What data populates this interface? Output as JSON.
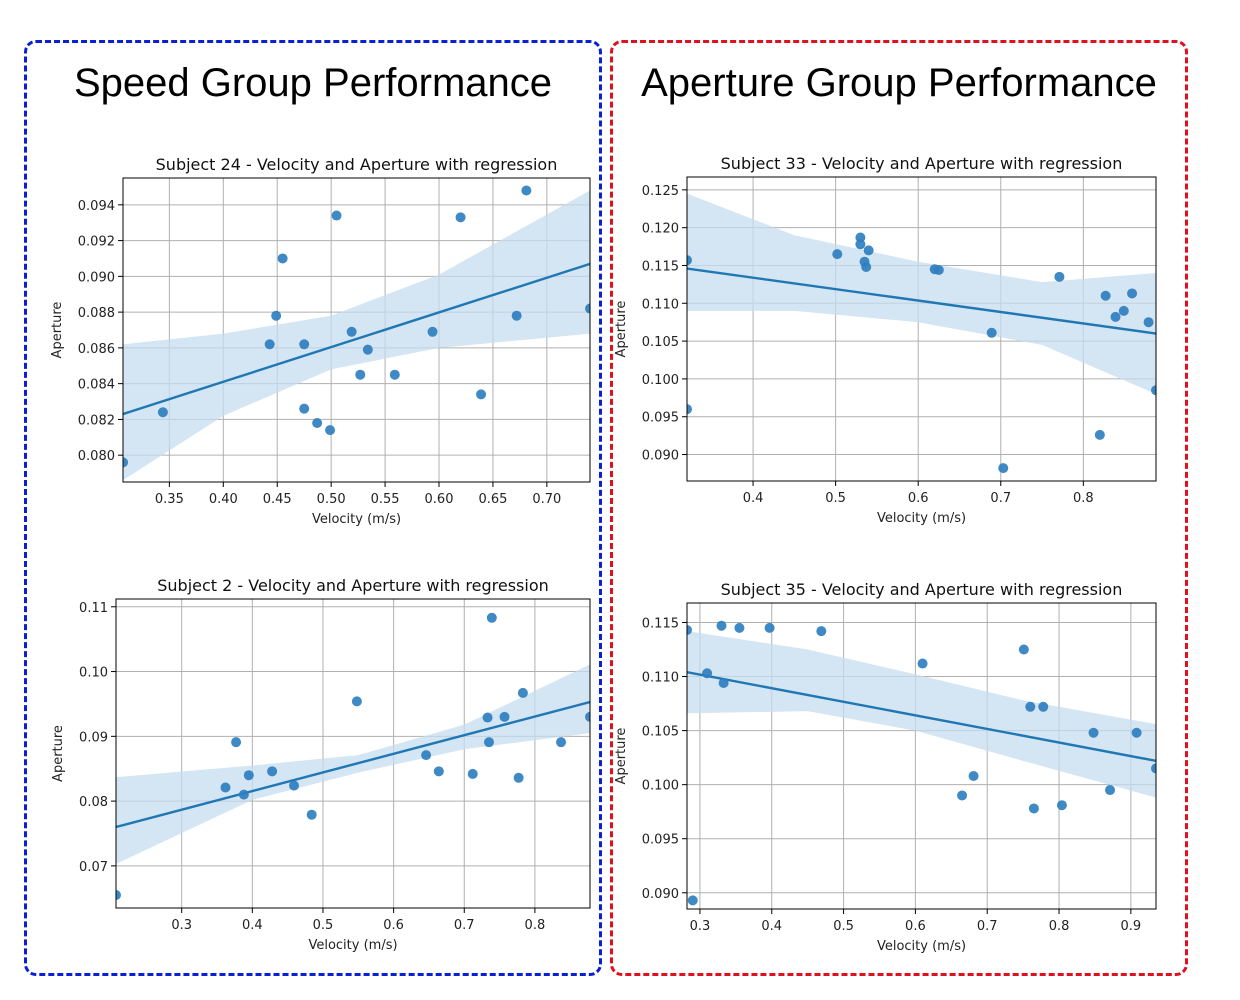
{
  "groups": {
    "speed": {
      "title": "Speed Group Performance",
      "border_color": "#0a1fd8"
    },
    "aperture": {
      "title": "Aperture Group Performance",
      "border_color": "#e0101e"
    }
  },
  "colors": {
    "point": "#2f7fbf",
    "line": "#1f77b4",
    "band": "#c6dcef",
    "grid": "#b0b0b0"
  },
  "chart_data": [
    {
      "type": "scatter",
      "group": "speed",
      "title": "Subject 24 - Velocity and Aperture with regression",
      "xlabel": "Velocity (m/s)",
      "ylabel": "Aperture",
      "xlim": [
        0.307,
        0.74
      ],
      "ylim": [
        0.0785,
        0.0955
      ],
      "xticks": [
        0.35,
        0.4,
        0.45,
        0.5,
        0.55,
        0.6,
        0.65,
        0.7
      ],
      "xtick_labels": [
        "0.35",
        "0.40",
        "0.45",
        "0.50",
        "0.55",
        "0.60",
        "0.65",
        "0.70"
      ],
      "yticks": [
        0.08,
        0.082,
        0.084,
        0.086,
        0.088,
        0.09,
        0.092,
        0.094
      ],
      "ytick_labels": [
        "0.080",
        "0.082",
        "0.084",
        "0.086",
        "0.088",
        "0.090",
        "0.092",
        "0.094"
      ],
      "points": [
        [
          0.307,
          0.0796
        ],
        [
          0.344,
          0.0824
        ],
        [
          0.443,
          0.0862
        ],
        [
          0.449,
          0.0878
        ],
        [
          0.455,
          0.091
        ],
        [
          0.475,
          0.0862
        ],
        [
          0.475,
          0.0826
        ],
        [
          0.487,
          0.0818
        ],
        [
          0.499,
          0.0814
        ],
        [
          0.505,
          0.0934
        ],
        [
          0.519,
          0.0869
        ],
        [
          0.527,
          0.0845
        ],
        [
          0.534,
          0.0859
        ],
        [
          0.559,
          0.0845
        ],
        [
          0.594,
          0.0869
        ],
        [
          0.62,
          0.0933
        ],
        [
          0.639,
          0.0834
        ],
        [
          0.672,
          0.0878
        ],
        [
          0.681,
          0.0948
        ],
        [
          0.74,
          0.0882
        ]
      ],
      "regression": {
        "x": [
          0.307,
          0.74
        ],
        "y": [
          0.0823,
          0.0907
        ]
      },
      "ci_upper": [
        [
          0.307,
          0.0862
        ],
        [
          0.4,
          0.0868
        ],
        [
          0.5,
          0.0878
        ],
        [
          0.6,
          0.0901
        ],
        [
          0.74,
          0.0948
        ]
      ],
      "ci_lower": [
        [
          0.307,
          0.0786
        ],
        [
          0.4,
          0.0822
        ],
        [
          0.5,
          0.0848
        ],
        [
          0.6,
          0.086
        ],
        [
          0.74,
          0.0868
        ]
      ]
    },
    {
      "type": "scatter",
      "group": "speed",
      "title": "Subject 2 - Velocity and Aperture with regression",
      "xlabel": "Velocity (m/s)",
      "ylabel": "Aperture",
      "xlim": [
        0.207,
        0.878
      ],
      "ylim": [
        0.0635,
        0.1112
      ],
      "xticks": [
        0.3,
        0.4,
        0.5,
        0.6,
        0.7,
        0.8
      ],
      "xtick_labels": [
        "0.3",
        "0.4",
        "0.5",
        "0.6",
        "0.7",
        "0.8"
      ],
      "yticks": [
        0.07,
        0.08,
        0.09,
        0.1,
        0.11
      ],
      "ytick_labels": [
        "0.07",
        "0.08",
        "0.09",
        "0.10",
        "0.11"
      ],
      "points": [
        [
          0.207,
          0.0655
        ],
        [
          0.362,
          0.0821
        ],
        [
          0.377,
          0.0891
        ],
        [
          0.388,
          0.081
        ],
        [
          0.395,
          0.084
        ],
        [
          0.428,
          0.0846
        ],
        [
          0.459,
          0.0824
        ],
        [
          0.484,
          0.0779
        ],
        [
          0.548,
          0.0954
        ],
        [
          0.646,
          0.0871
        ],
        [
          0.664,
          0.0846
        ],
        [
          0.712,
          0.0842
        ],
        [
          0.733,
          0.0929
        ],
        [
          0.735,
          0.0891
        ],
        [
          0.739,
          0.1083
        ],
        [
          0.757,
          0.093
        ],
        [
          0.777,
          0.0836
        ],
        [
          0.783,
          0.0967
        ],
        [
          0.837,
          0.0891
        ],
        [
          0.878,
          0.093
        ]
      ],
      "regression": {
        "x": [
          0.207,
          0.878
        ],
        "y": [
          0.076,
          0.0953
        ]
      },
      "ci_upper": [
        [
          0.207,
          0.0837
        ],
        [
          0.4,
          0.0855
        ],
        [
          0.55,
          0.0871
        ],
        [
          0.7,
          0.0918
        ],
        [
          0.878,
          0.1011
        ]
      ],
      "ci_lower": [
        [
          0.207,
          0.0703
        ],
        [
          0.4,
          0.0802
        ],
        [
          0.55,
          0.0844
        ],
        [
          0.7,
          0.088
        ],
        [
          0.878,
          0.0905
        ]
      ]
    },
    {
      "type": "scatter",
      "group": "aperture",
      "title": "Subject 33 - Velocity and Aperture with regression",
      "xlabel": "Velocity (m/s)",
      "ylabel": "Aperture",
      "xlim": [
        0.32,
        0.888
      ],
      "ylim": [
        0.0865,
        0.1267
      ],
      "xticks": [
        0.4,
        0.5,
        0.6,
        0.7,
        0.8
      ],
      "xtick_labels": [
        "0.4",
        "0.5",
        "0.6",
        "0.7",
        "0.8"
      ],
      "yticks": [
        0.09,
        0.095,
        0.1,
        0.105,
        0.11,
        0.115,
        0.12,
        0.125
      ],
      "ytick_labels": [
        "0.090",
        "0.095",
        "0.100",
        "0.105",
        "0.110",
        "0.115",
        "0.120",
        "0.125"
      ],
      "points": [
        [
          0.32,
          0.1157
        ],
        [
          0.32,
          0.096
        ],
        [
          0.502,
          0.1165
        ],
        [
          0.53,
          0.1187
        ],
        [
          0.53,
          0.1178
        ],
        [
          0.535,
          0.1155
        ],
        [
          0.537,
          0.1148
        ],
        [
          0.54,
          0.117
        ],
        [
          0.62,
          0.1145
        ],
        [
          0.625,
          0.1144
        ],
        [
          0.689,
          0.1061
        ],
        [
          0.703,
          0.0882
        ],
        [
          0.771,
          0.1135
        ],
        [
          0.82,
          0.0926
        ],
        [
          0.827,
          0.111
        ],
        [
          0.839,
          0.1082
        ],
        [
          0.849,
          0.109
        ],
        [
          0.859,
          0.1113
        ],
        [
          0.879,
          0.1075
        ],
        [
          0.888,
          0.0985
        ]
      ],
      "regression": {
        "x": [
          0.32,
          0.888
        ],
        "y": [
          0.1146,
          0.106
        ]
      },
      "ci_upper": [
        [
          0.32,
          0.1245
        ],
        [
          0.45,
          0.119
        ],
        [
          0.6,
          0.1155
        ],
        [
          0.75,
          0.1128
        ],
        [
          0.888,
          0.114
        ]
      ],
      "ci_lower": [
        [
          0.32,
          0.109
        ],
        [
          0.45,
          0.109
        ],
        [
          0.6,
          0.1075
        ],
        [
          0.75,
          0.1045
        ],
        [
          0.888,
          0.098
        ]
      ]
    },
    {
      "type": "scatter",
      "group": "aperture",
      "title": "Subject 35 - Velocity and Aperture with regression",
      "xlabel": "Velocity (m/s)",
      "ylabel": "Aperture",
      "xlim": [
        0.282,
        0.935
      ],
      "ylim": [
        0.0885,
        0.1168
      ],
      "xticks": [
        0.3,
        0.4,
        0.5,
        0.6,
        0.7,
        0.8,
        0.9
      ],
      "xtick_labels": [
        "0.3",
        "0.4",
        "0.5",
        "0.6",
        "0.7",
        "0.8",
        "0.9"
      ],
      "yticks": [
        0.09,
        0.095,
        0.1,
        0.105,
        0.11,
        0.115
      ],
      "ytick_labels": [
        "0.090",
        "0.095",
        "0.100",
        "0.105",
        "0.110",
        "0.115"
      ],
      "points": [
        [
          0.282,
          0.1143
        ],
        [
          0.29,
          0.0893
        ],
        [
          0.31,
          0.1103
        ],
        [
          0.33,
          0.1147
        ],
        [
          0.333,
          0.1094
        ],
        [
          0.355,
          0.1145
        ],
        [
          0.397,
          0.1145
        ],
        [
          0.469,
          0.1142
        ],
        [
          0.61,
          0.1112
        ],
        [
          0.665,
          0.099
        ],
        [
          0.681,
          0.1008
        ],
        [
          0.751,
          0.1125
        ],
        [
          0.76,
          0.1072
        ],
        [
          0.765,
          0.0978
        ],
        [
          0.778,
          0.1072
        ],
        [
          0.804,
          0.0981
        ],
        [
          0.848,
          0.1048
        ],
        [
          0.871,
          0.0995
        ],
        [
          0.908,
          0.1048
        ],
        [
          0.935,
          0.1015
        ]
      ],
      "regression": {
        "x": [
          0.282,
          0.935
        ],
        "y": [
          0.1104,
          0.1022
        ]
      },
      "ci_upper": [
        [
          0.282,
          0.1142
        ],
        [
          0.45,
          0.1125
        ],
        [
          0.6,
          0.1102
        ],
        [
          0.75,
          0.1078
        ],
        [
          0.935,
          0.1056
        ]
      ],
      "ci_lower": [
        [
          0.282,
          0.1066
        ],
        [
          0.45,
          0.1068
        ],
        [
          0.6,
          0.105
        ],
        [
          0.75,
          0.1022
        ],
        [
          0.935,
          0.0988
        ]
      ]
    }
  ]
}
